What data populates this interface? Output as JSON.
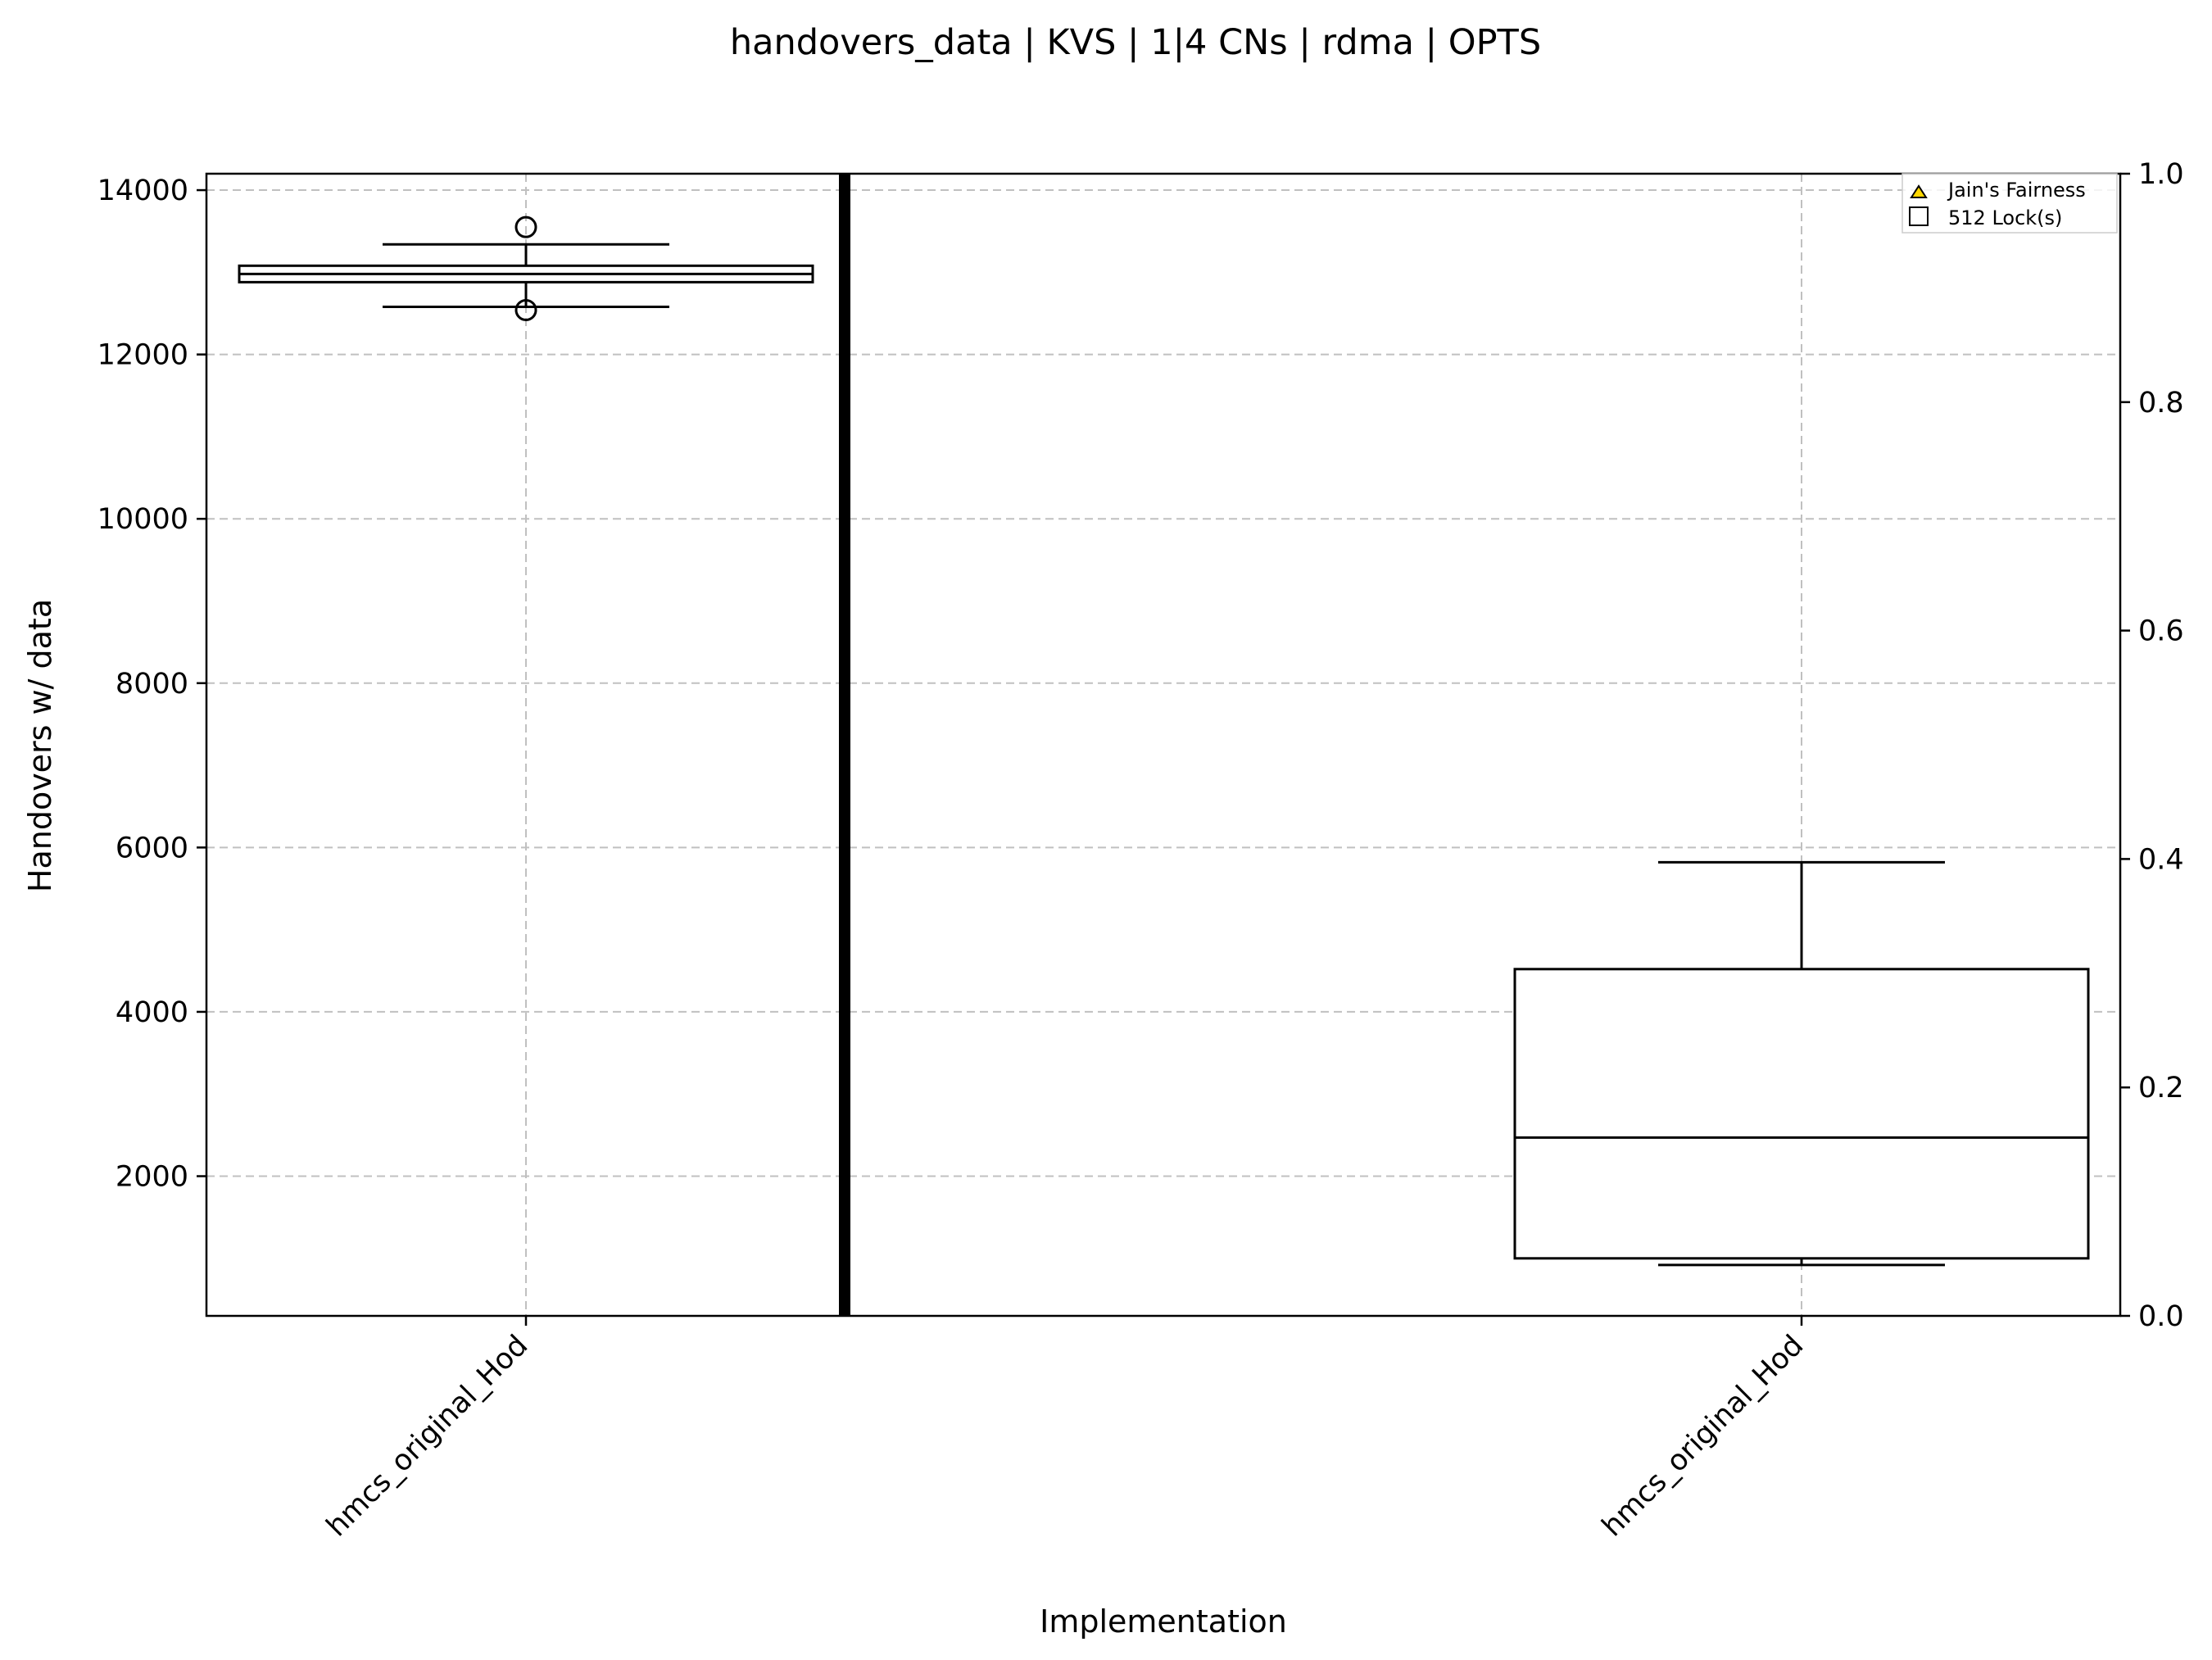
{
  "chart_data": {
    "type": "box",
    "title": "handovers_data | KVS | 1|4 CNs | rdma | OPTS",
    "xlabel": "Implementation",
    "ylabel": "Handovers w/ data",
    "ylim": [
      300,
      14200
    ],
    "y2lim": [
      0.0,
      1.0
    ],
    "grid": true,
    "grid_style": "dashed",
    "legend_position": "top-right",
    "categories": [
      "hmcs_original_Hod",
      "hmcs_original_Hod"
    ],
    "yticks": [
      "2000",
      "4000",
      "6000",
      "8000",
      "10000",
      "12000",
      "14000"
    ],
    "y2ticks": [
      "0.0",
      "0.2",
      "0.4",
      "0.6",
      "0.8",
      "1.0"
    ],
    "legend": [
      {
        "label": "Jain's Fairness",
        "marker": "triangle",
        "color": "#FFD700"
      },
      {
        "label": "512 Lock(s)",
        "marker": "square",
        "color": "#ffffff"
      }
    ],
    "series": [
      {
        "category": "hmcs_original_Hod",
        "box": {
          "whisker_low": 12580,
          "q1": 12880,
          "median": 12980,
          "q3": 13080,
          "whisker_high": 13340
        },
        "outliers": [
          13550,
          12540
        ]
      },
      {
        "category": "hmcs_original_Hod",
        "box": {
          "whisker_low": 920,
          "q1": 1000,
          "median": 2470,
          "q3": 4520,
          "whisker_high": 5820
        },
        "outliers": []
      }
    ],
    "colors": {
      "box_edge": "#000000",
      "grid": "#c0c0c0",
      "separator": "#000000"
    }
  }
}
